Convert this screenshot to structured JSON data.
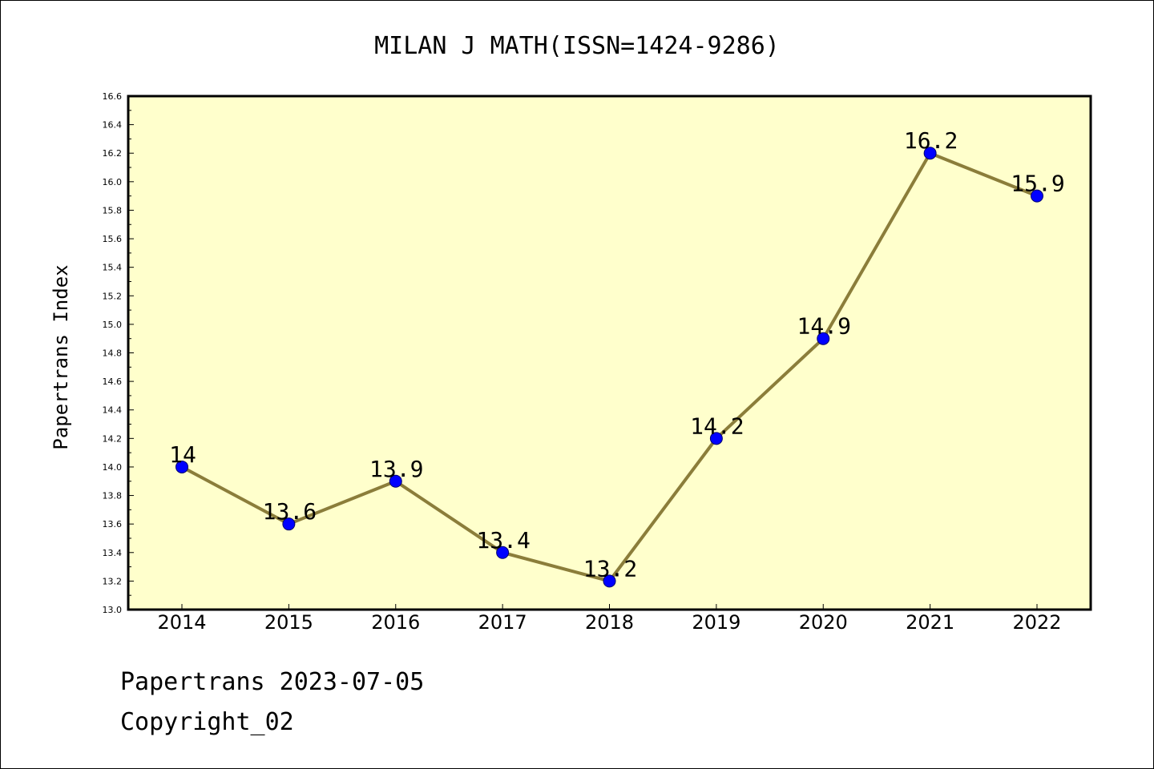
{
  "chart_data": {
    "type": "line",
    "title": "MILAN J MATH(ISSN=1424-9286)",
    "xlabel": "",
    "ylabel": "Papertrans Index",
    "categories": [
      "2014",
      "2015",
      "2016",
      "2017",
      "2018",
      "2019",
      "2020",
      "2021",
      "2022"
    ],
    "values": [
      14,
      13.6,
      13.9,
      13.4,
      13.2,
      14.2,
      14.9,
      16.2,
      15.9
    ],
    "data_labels": [
      "14",
      "13.6",
      "13.9",
      "13.4",
      "13.2",
      "14.2",
      "14.9",
      "16.2",
      "15.9"
    ],
    "ylim": [
      13.0,
      16.6
    ],
    "yticks": [
      "13.0",
      "13.2",
      "13.4",
      "13.6",
      "13.8",
      "14.0",
      "14.2",
      "14.4",
      "14.6",
      "14.8",
      "15.0",
      "15.2",
      "15.4",
      "15.6",
      "15.8",
      "16.0",
      "16.2",
      "16.4",
      "16.6"
    ],
    "grid": false,
    "legend": "none",
    "colors": {
      "plot_background": "#ffffcc",
      "line": "#8b7d3a",
      "marker": "#0000ff"
    }
  },
  "footer": {
    "line1": "Papertrans 2023-07-05",
    "line2": "Copyright_02"
  }
}
